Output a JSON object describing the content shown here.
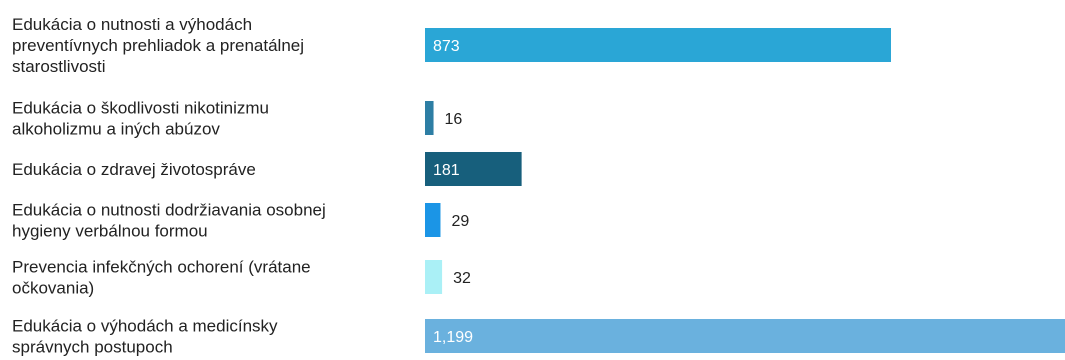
{
  "chart_data": {
    "type": "bar",
    "orientation": "horizontal",
    "title": "",
    "xlabel": "",
    "ylabel": "",
    "grid": false,
    "legend": "none",
    "xlim": [
      0,
      1199
    ],
    "categories": [
      [
        "Edukácia o nutnosti a výhodách",
        "preventívnych prehliadok a prenatálnej",
        "starostlivosti"
      ],
      [
        "Edukácia o škodlivosti nikotinizmu",
        "alkoholizmu a iných abúzov"
      ],
      [
        "Edukácia o zdravej životospráve"
      ],
      [
        "Edukácia o nutnosti dodržiavania osobnej",
        "hygieny verbálnou formou"
      ],
      [
        "Prevencia infekčných ochorení (vrátane",
        "očkovania)"
      ],
      [
        "Edukácia o výhodách a medicínsky",
        "správnych postupoch"
      ]
    ],
    "values": [
      873,
      16,
      181,
      29,
      32,
      1199
    ],
    "value_labels": [
      "873",
      "16",
      "181",
      "29",
      "32",
      "1,199"
    ],
    "colors": [
      "#2aa6d6",
      "#2d7ea4",
      "#175f7c",
      "#1b95e6",
      "#aaf0f6",
      "#6ab1de"
    ]
  }
}
